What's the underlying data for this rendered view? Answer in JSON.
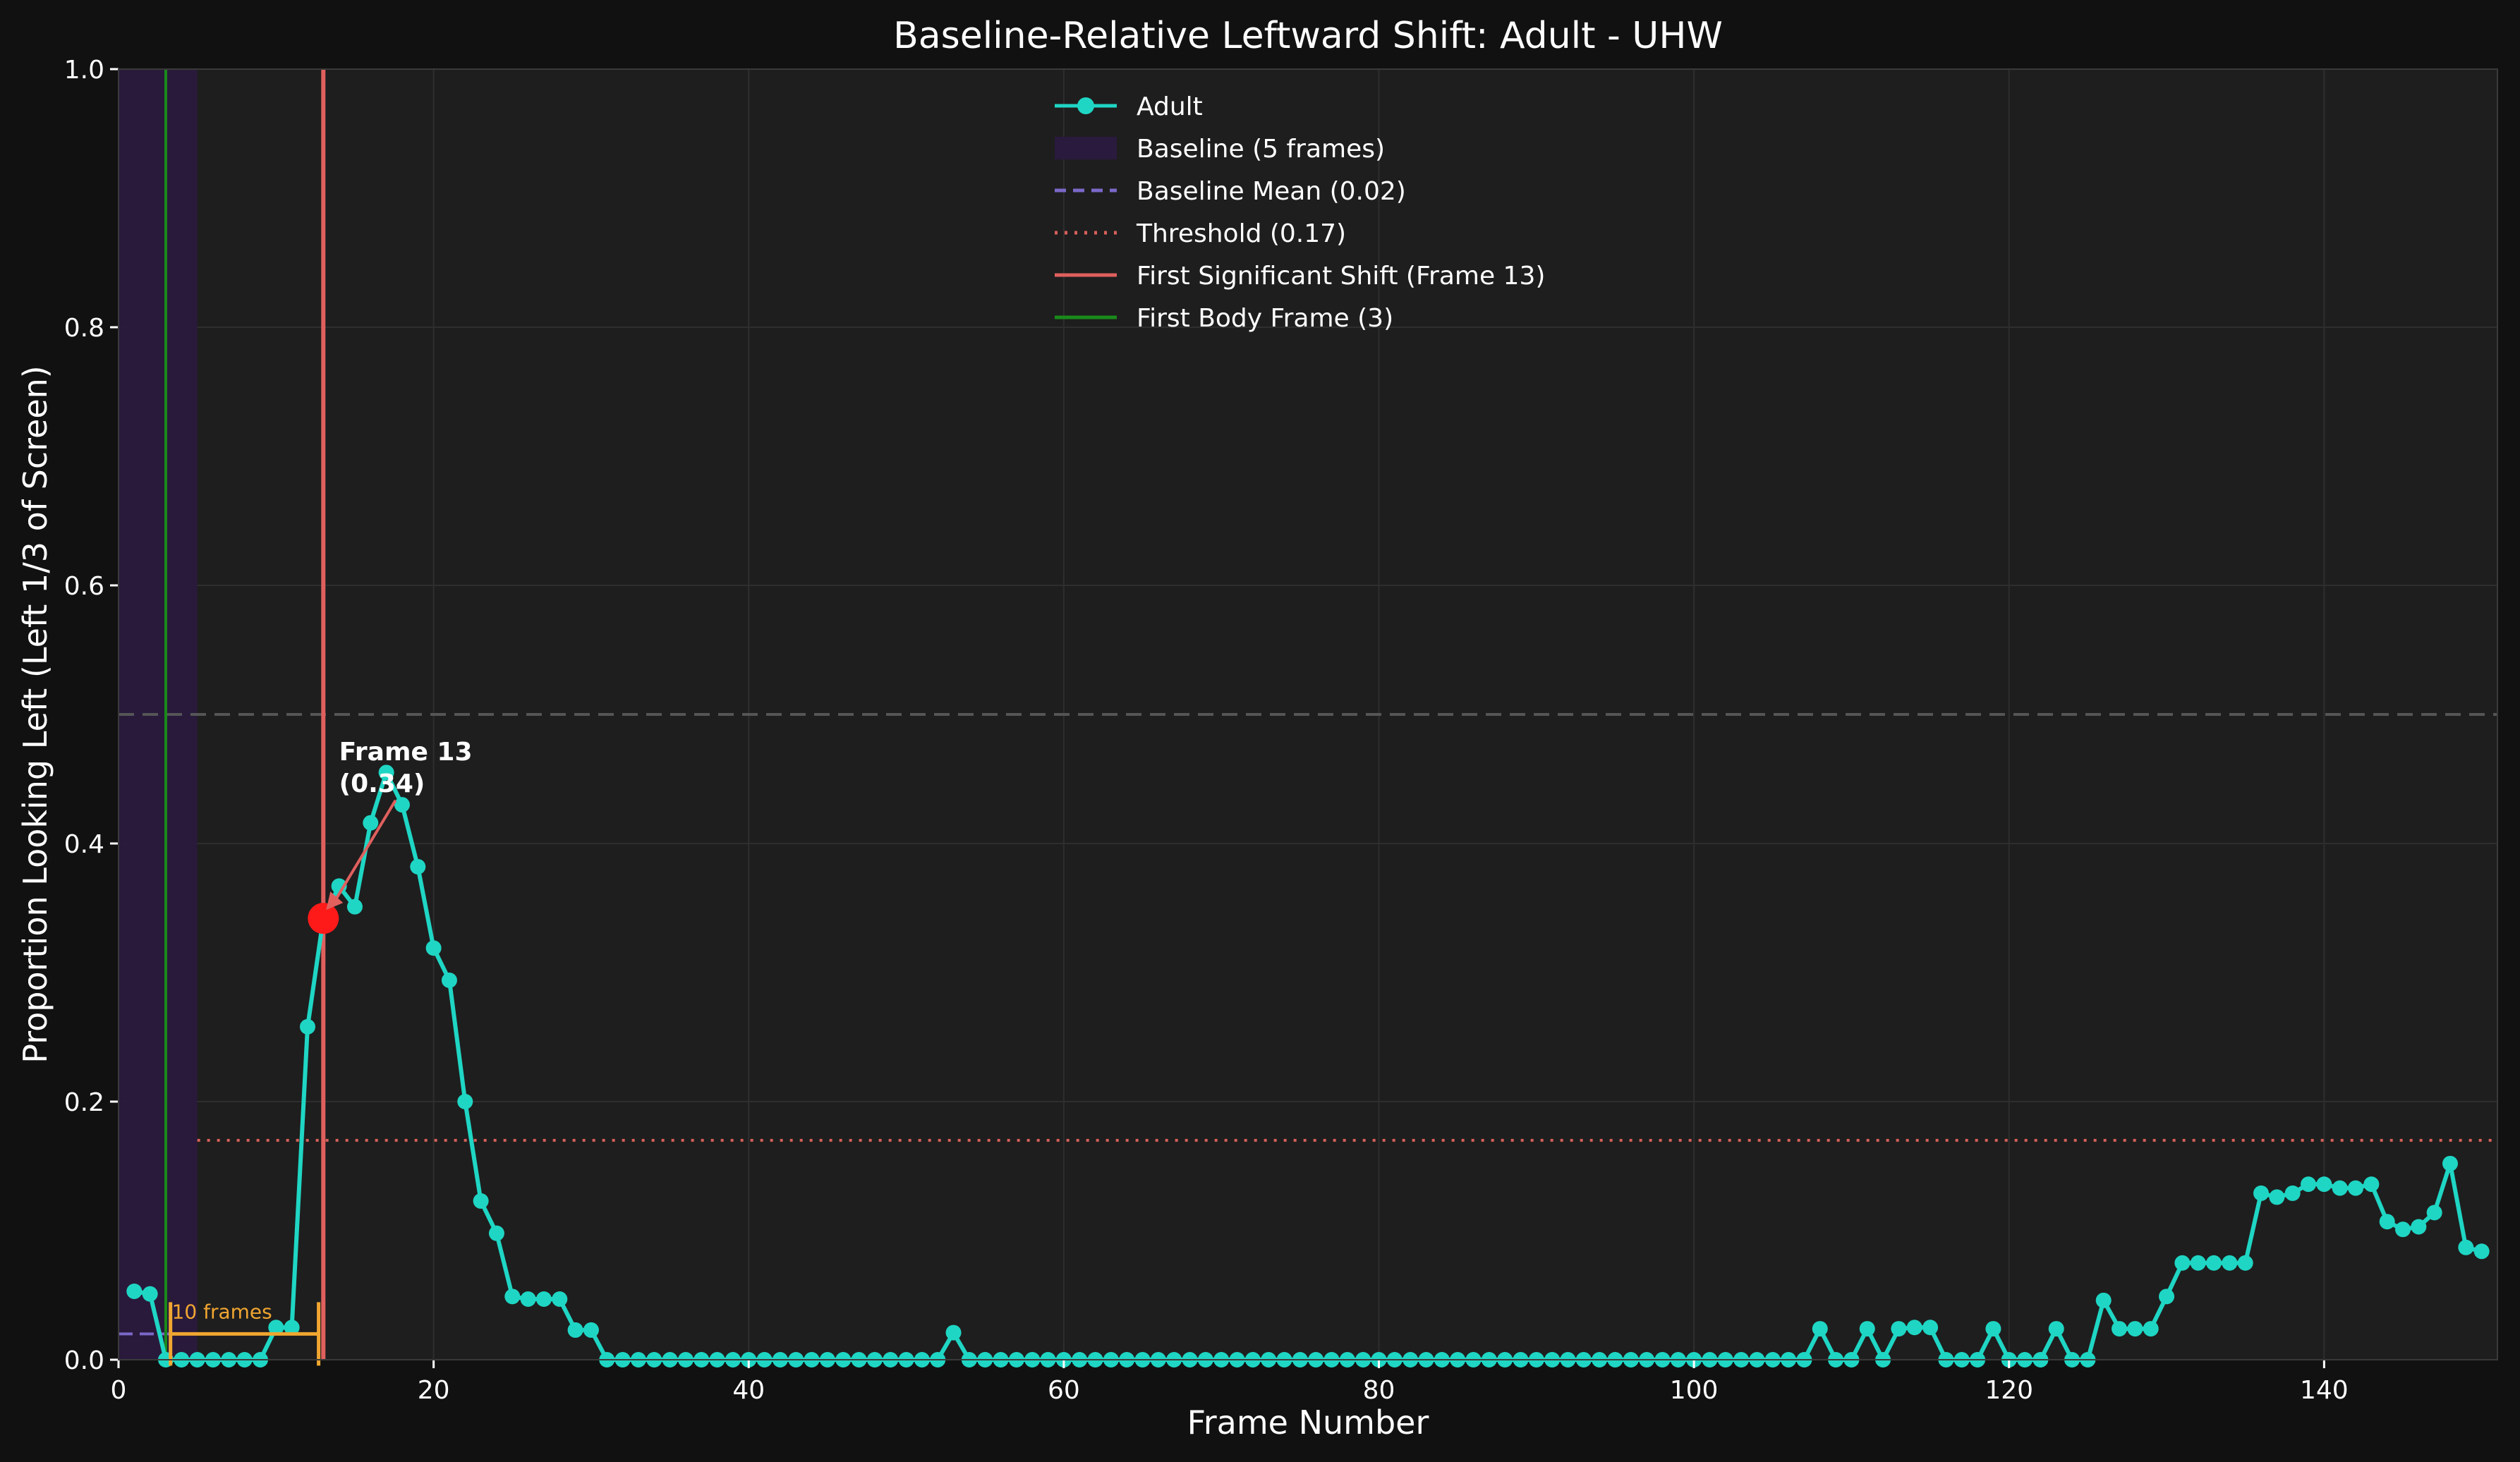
{
  "chart_data": {
    "type": "line",
    "title": "Baseline-Relative Leftward Shift: Adult - UHW",
    "xlabel": "Frame Number",
    "ylabel": "Proportion Looking Left (Left 1/3 of Screen)",
    "xlim": [
      0,
      151
    ],
    "ylim": [
      0.0,
      1.0
    ],
    "xticks": [
      0,
      20,
      40,
      60,
      80,
      100,
      120,
      140
    ],
    "yticks": [
      0.0,
      0.2,
      0.4,
      0.6,
      0.8,
      1.0
    ],
    "grid": true,
    "legend_position": "top-center",
    "series": [
      {
        "name": "Adult",
        "color": "#1fd6c4",
        "x": [
          1,
          2,
          3,
          4,
          5,
          6,
          7,
          8,
          9,
          10,
          11,
          12,
          13,
          14,
          15,
          16,
          17,
          18,
          19,
          20,
          21,
          22,
          23,
          24,
          25,
          26,
          27,
          28,
          29,
          30,
          31,
          32,
          33,
          34,
          35,
          36,
          37,
          38,
          39,
          40,
          41,
          42,
          43,
          44,
          45,
          46,
          47,
          48,
          49,
          50,
          51,
          52,
          53,
          54,
          55,
          56,
          57,
          58,
          59,
          60,
          61,
          62,
          63,
          64,
          65,
          66,
          67,
          68,
          69,
          70,
          71,
          72,
          73,
          74,
          75,
          76,
          77,
          78,
          79,
          80,
          81,
          82,
          83,
          84,
          85,
          86,
          87,
          88,
          89,
          90,
          91,
          92,
          93,
          94,
          95,
          96,
          97,
          98,
          99,
          100,
          101,
          102,
          103,
          104,
          105,
          106,
          107,
          108,
          109,
          110,
          111,
          112,
          113,
          114,
          115,
          116,
          117,
          118,
          119,
          120,
          121,
          122,
          123,
          124,
          125,
          126,
          127,
          128,
          129,
          130,
          131,
          132,
          133,
          134,
          135,
          136,
          137,
          138,
          139,
          140,
          141,
          142,
          143,
          144,
          145,
          146,
          147,
          148,
          149,
          150
        ],
        "y": [
          0.053,
          0.051,
          0.0,
          0.0,
          0.0,
          0.0,
          0.0,
          0.0,
          0.0,
          0.025,
          0.025,
          0.258,
          0.342,
          0.367,
          0.351,
          0.416,
          0.455,
          0.43,
          0.382,
          0.319,
          0.294,
          0.2,
          0.123,
          0.098,
          0.049,
          0.047,
          0.047,
          0.047,
          0.023,
          0.023,
          0.0,
          0.0,
          0.0,
          0.0,
          0.0,
          0.0,
          0.0,
          0.0,
          0.0,
          0.0,
          0.0,
          0.0,
          0.0,
          0.0,
          0.0,
          0.0,
          0.0,
          0.0,
          0.0,
          0.0,
          0.0,
          0.0,
          0.021,
          0.0,
          0.0,
          0.0,
          0.0,
          0.0,
          0.0,
          0.0,
          0.0,
          0.0,
          0.0,
          0.0,
          0.0,
          0.0,
          0.0,
          0.0,
          0.0,
          0.0,
          0.0,
          0.0,
          0.0,
          0.0,
          0.0,
          0.0,
          0.0,
          0.0,
          0.0,
          0.0,
          0.0,
          0.0,
          0.0,
          0.0,
          0.0,
          0.0,
          0.0,
          0.0,
          0.0,
          0.0,
          0.0,
          0.0,
          0.0,
          0.0,
          0.0,
          0.0,
          0.0,
          0.0,
          0.0,
          0.0,
          0.0,
          0.0,
          0.0,
          0.0,
          0.0,
          0.0,
          0.0,
          0.024,
          0.0,
          0.0,
          0.024,
          0.0,
          0.024,
          0.025,
          0.025,
          0.0,
          0.0,
          0.0,
          0.024,
          0.0,
          0.0,
          0.0,
          0.024,
          0.0,
          0.0,
          0.046,
          0.024,
          0.024,
          0.024,
          0.049,
          0.075,
          0.075,
          0.075,
          0.075,
          0.075,
          0.129,
          0.126,
          0.129,
          0.136,
          0.136,
          0.133,
          0.133,
          0.136,
          0.107,
          0.101,
          0.103,
          0.114,
          0.152,
          0.087,
          0.084
        ]
      }
    ],
    "baseline": {
      "label": "Baseline (5 frames)",
      "x_start": 0,
      "x_end": 5,
      "color": "#2a1a3e"
    },
    "baseline_mean": {
      "label": "Baseline Mean (0.02)",
      "value": 0.02,
      "x_start": 0,
      "x_end": 5,
      "color": "#7b68c8"
    },
    "threshold": {
      "label": "Threshold (0.17)",
      "value": 0.17,
      "x_start": 5,
      "x_end": 151,
      "color": "#d9605a"
    },
    "chance_line": {
      "value": 0.5,
      "color": "#555555"
    },
    "first_shift": {
      "label": "First Significant Shift (Frame 13)",
      "frame": 13,
      "value": 0.342,
      "color": "#e0605e"
    },
    "first_body": {
      "label": "First Body Frame (3)",
      "frame": 3,
      "color": "#1a8a1a"
    },
    "annotation": {
      "line1": "Frame 13",
      "line2": "(0.34)",
      "x": 14,
      "y": 0.44
    },
    "bracket": {
      "label": "10 frames",
      "x_start": 3.3,
      "x_end": 12.7,
      "y": 0.02,
      "color": "#f0a630"
    }
  }
}
